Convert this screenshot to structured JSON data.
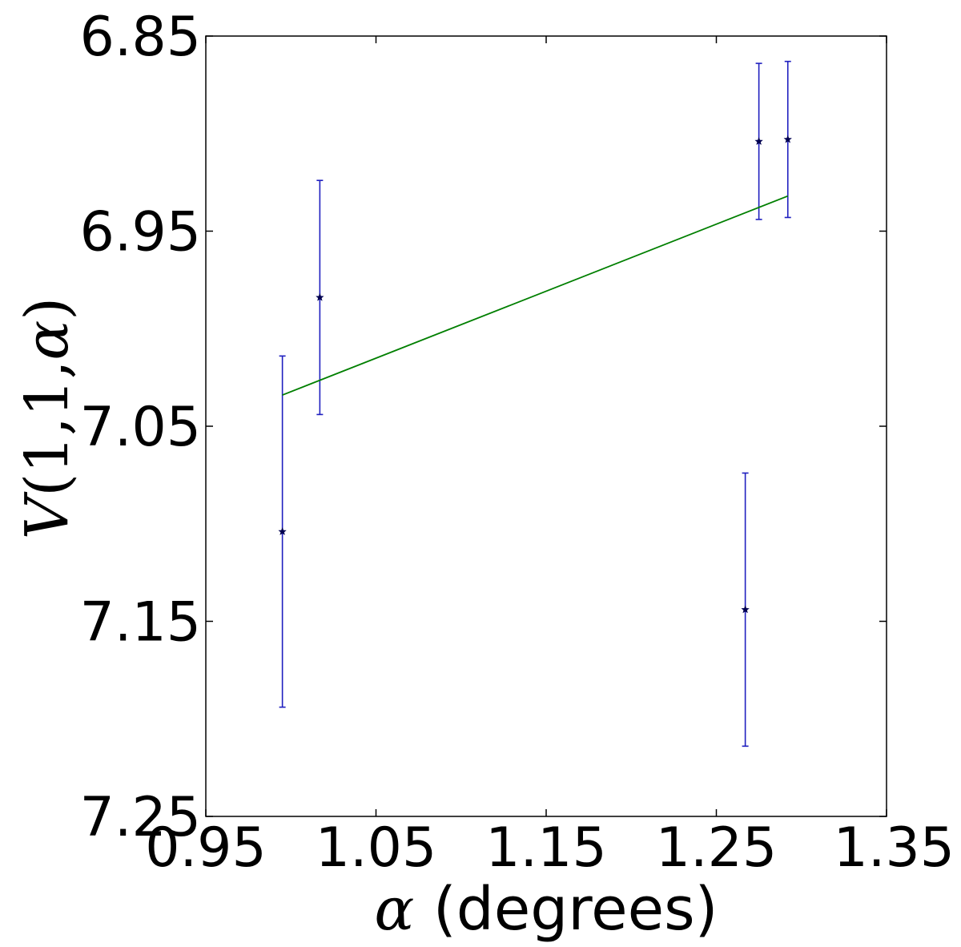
{
  "chart_data": {
    "type": "scatter",
    "title": "",
    "xlabel": {
      "symbol": "α",
      "text": " (degrees)"
    },
    "ylabel": {
      "prefix": "V",
      "args": "(1,1,",
      "symbol": "α",
      "suffix": ")"
    },
    "xlim": [
      0.95,
      1.35
    ],
    "ylim": [
      7.25,
      6.85
    ],
    "y_inverted": true,
    "x_ticks": [
      "0.95",
      "1.05",
      "1.15",
      "1.25",
      "1.35"
    ],
    "y_ticks": [
      "6.85",
      "6.95",
      "7.05",
      "7.15",
      "7.25"
    ],
    "grid": false,
    "series": [
      {
        "kind": "errorbar",
        "marker": "star",
        "color": "#1f1fbf",
        "marker_color": "#000050",
        "points": [
          {
            "x": 0.995,
            "y": 7.104,
            "yerr": 0.09
          },
          {
            "x": 1.017,
            "y": 6.984,
            "yerr": 0.06
          },
          {
            "x": 1.267,
            "y": 7.144,
            "yerr": 0.07
          },
          {
            "x": 1.275,
            "y": 6.904,
            "yerr": 0.04
          },
          {
            "x": 1.292,
            "y": 6.903,
            "yerr": 0.04
          }
        ]
      },
      {
        "kind": "line",
        "color": "#007f00",
        "x": [
          0.995,
          1.292
        ],
        "y": [
          7.034,
          6.932
        ]
      }
    ]
  }
}
